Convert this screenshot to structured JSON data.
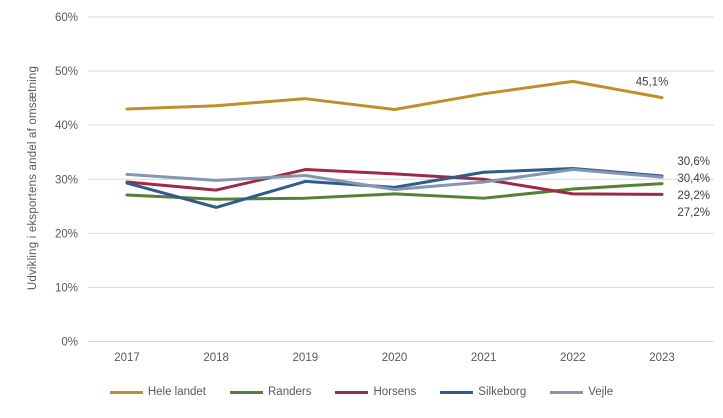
{
  "chart_data": {
    "type": "line",
    "title": "",
    "xlabel": "",
    "ylabel": "Udvikling i eksportens andel af omsætning",
    "categories": [
      "2017",
      "2018",
      "2019",
      "2020",
      "2021",
      "2022",
      "2023"
    ],
    "ylim": [
      0,
      60
    ],
    "ytick_step": 10,
    "ytick_suffix": "%",
    "grid": "horizontal-only",
    "legend_position": "bottom",
    "series": [
      {
        "name": "Hele landet",
        "color": "#BF8F29",
        "values": [
          43.0,
          43.6,
          44.9,
          42.9,
          45.8,
          48.1,
          45.1
        ],
        "end_label": "45,1%"
      },
      {
        "name": "Randers",
        "color": "#548235",
        "values": [
          27.1,
          26.3,
          26.5,
          27.3,
          26.5,
          28.2,
          29.2
        ],
        "end_label": "29,2%"
      },
      {
        "name": "Horsens",
        "color": "#9E2A43",
        "values": [
          29.5,
          28.0,
          31.8,
          31.0,
          30.0,
          27.3,
          27.2
        ],
        "end_label": "27,2%"
      },
      {
        "name": "Silkeborg",
        "color": "#2F5B8E",
        "values": [
          29.3,
          24.8,
          29.6,
          28.5,
          31.3,
          32.0,
          30.6
        ],
        "end_label": "30,6%"
      },
      {
        "name": "Vejle",
        "color": "#8496B0",
        "values": [
          30.9,
          29.8,
          30.7,
          28.1,
          29.5,
          31.8,
          30.4
        ],
        "end_label": "30,4%"
      }
    ],
    "colors": {
      "gridline": "#D9D9D9",
      "axis_text": "#595959",
      "data_label_text": "#3F3F3F",
      "background": "#FFFFFF"
    }
  }
}
